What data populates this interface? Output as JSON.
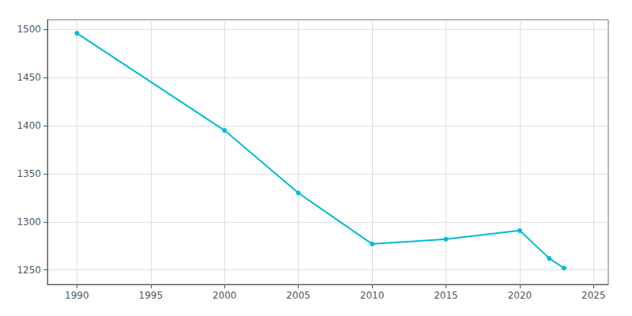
{
  "chart_data": {
    "type": "line",
    "x": [
      1990,
      2000,
      2005,
      2010,
      2015,
      2020,
      2022,
      2023
    ],
    "values": [
      1496,
      1395,
      1330,
      1277,
      1282,
      1291,
      1262,
      1252
    ],
    "color": "#00BCD4",
    "marker": "circle",
    "xlim": [
      1988,
      2026
    ],
    "ylim": [
      1235,
      1510
    ],
    "xticks": [
      1990,
      1995,
      2000,
      2005,
      2010,
      2015,
      2020,
      2025
    ],
    "yticks": [
      1250,
      1300,
      1350,
      1400,
      1450,
      1500
    ],
    "grid": true
  }
}
